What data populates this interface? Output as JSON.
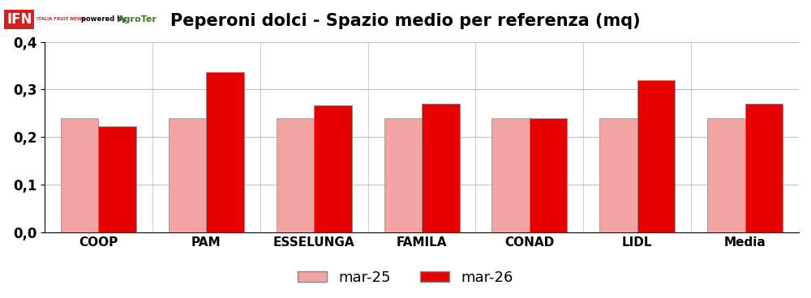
{
  "chart_data": {
    "type": "bar",
    "title": "Peperoni dolci - Spazio medio per referenza (mq)",
    "annotations": [
      "IFN",
      "ITALIA FRUIT NEWS",
      "powered by",
      "AgroTer"
    ],
    "categories": [
      "COOP",
      "PAM",
      "ESSELUNGA",
      "FAMILA",
      "CONAD",
      "LIDL",
      "Media"
    ],
    "series": [
      {
        "name": "mar-25",
        "color": "#f4a3a3",
        "values": [
          0.24,
          0.24,
          0.24,
          0.24,
          0.24,
          0.24,
          0.24
        ]
      },
      {
        "name": "mar-26",
        "color": "#e60000",
        "values": [
          0.223,
          0.336,
          0.267,
          0.27,
          0.24,
          0.32,
          0.27
        ]
      }
    ],
    "ylim": [
      0,
      0.4
    ],
    "yticks": [
      {
        "value": 0,
        "label": "0,0"
      },
      {
        "value": 0.1,
        "label": "0,1"
      },
      {
        "value": 0.2,
        "label": "0,2"
      },
      {
        "value": 0.3,
        "label": "0,3"
      },
      {
        "value": 0.4,
        "label": "0,4"
      }
    ],
    "grid": true,
    "legend": "lower center"
  }
}
